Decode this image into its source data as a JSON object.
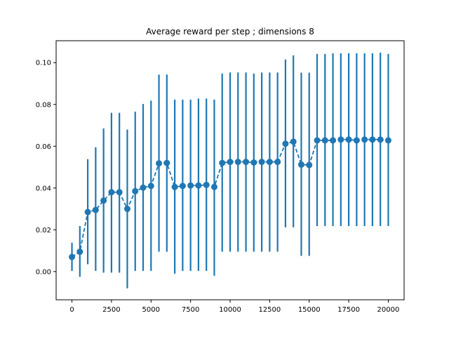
{
  "chart_data": {
    "type": "line",
    "title": "Average reward per step ; dimensions 8",
    "xlabel": "",
    "ylabel": "",
    "xlim": [
      -1000,
      21000
    ],
    "ylim": [
      -0.0135,
      0.1105
    ],
    "x_ticks": [
      0,
      2500,
      5000,
      7500,
      10000,
      12500,
      15000,
      17500,
      20000
    ],
    "x_tick_labels": [
      "0",
      "2500",
      "5000",
      "7500",
      "10000",
      "12500",
      "15000",
      "17500",
      "20000"
    ],
    "y_ticks": [
      0.0,
      0.02,
      0.04,
      0.06,
      0.08,
      0.1
    ],
    "y_tick_labels": [
      "0.00",
      "0.02",
      "0.04",
      "0.06",
      "0.08",
      "0.10"
    ],
    "grid": false,
    "color": "#1f77b4",
    "line_style": "dashed",
    "marker": "circle",
    "series": [
      {
        "x": [
          0,
          500,
          1000,
          1500,
          2000,
          2500,
          3000,
          3500,
          4000,
          4500,
          5000,
          5500,
          6000,
          6500,
          7000,
          7500,
          8000,
          8500,
          9000,
          9500,
          10000,
          10500,
          11000,
          11500,
          12000,
          12500,
          13000,
          13500,
          14000,
          14500,
          15000,
          15500,
          16000,
          16500,
          17000,
          17500,
          18000,
          18500,
          19000,
          19500,
          20000
        ],
        "y": [
          0.007,
          0.0095,
          0.0285,
          0.0295,
          0.034,
          0.038,
          0.038,
          0.03,
          0.0385,
          0.0402,
          0.041,
          0.0518,
          0.052,
          0.0405,
          0.041,
          0.0412,
          0.0412,
          0.0415,
          0.0405,
          0.052,
          0.0525,
          0.0525,
          0.0525,
          0.0522,
          0.0525,
          0.0525,
          0.0525,
          0.0612,
          0.0622,
          0.0512,
          0.051,
          0.0628,
          0.0628,
          0.0628,
          0.0632,
          0.0632,
          0.0628,
          0.0632,
          0.0632,
          0.0632,
          0.0628
        ],
        "error_low": [
          0.0003,
          -0.0025,
          0.0035,
          0.0003,
          -0.0005,
          -0.0005,
          -0.0005,
          -0.008,
          0.0003,
          0.0003,
          0.0003,
          0.0095,
          0.0095,
          -0.001,
          0.0003,
          0.0003,
          0.0003,
          0.0003,
          -0.002,
          0.0095,
          0.0095,
          0.0095,
          0.0095,
          0.0095,
          0.0095,
          0.0095,
          0.0095,
          0.0212,
          0.0212,
          0.0075,
          0.0075,
          0.0218,
          0.0218,
          0.0218,
          0.0218,
          0.0218,
          0.0218,
          0.0218,
          0.0218,
          0.0218,
          0.0218
        ],
        "error_high": [
          0.0138,
          0.0218,
          0.0538,
          0.0595,
          0.0685,
          0.076,
          0.076,
          0.068,
          0.0765,
          0.0802,
          0.0818,
          0.0943,
          0.0943,
          0.0823,
          0.0823,
          0.0823,
          0.0828,
          0.0828,
          0.0823,
          0.0948,
          0.0953,
          0.0953,
          0.0953,
          0.0948,
          0.0953,
          0.0953,
          0.0953,
          0.1015,
          0.1035,
          0.0952,
          0.0952,
          0.1042,
          0.1042,
          0.1045,
          0.1045,
          0.1045,
          0.1045,
          0.1045,
          0.1045,
          0.1048,
          0.1042
        ]
      }
    ]
  }
}
